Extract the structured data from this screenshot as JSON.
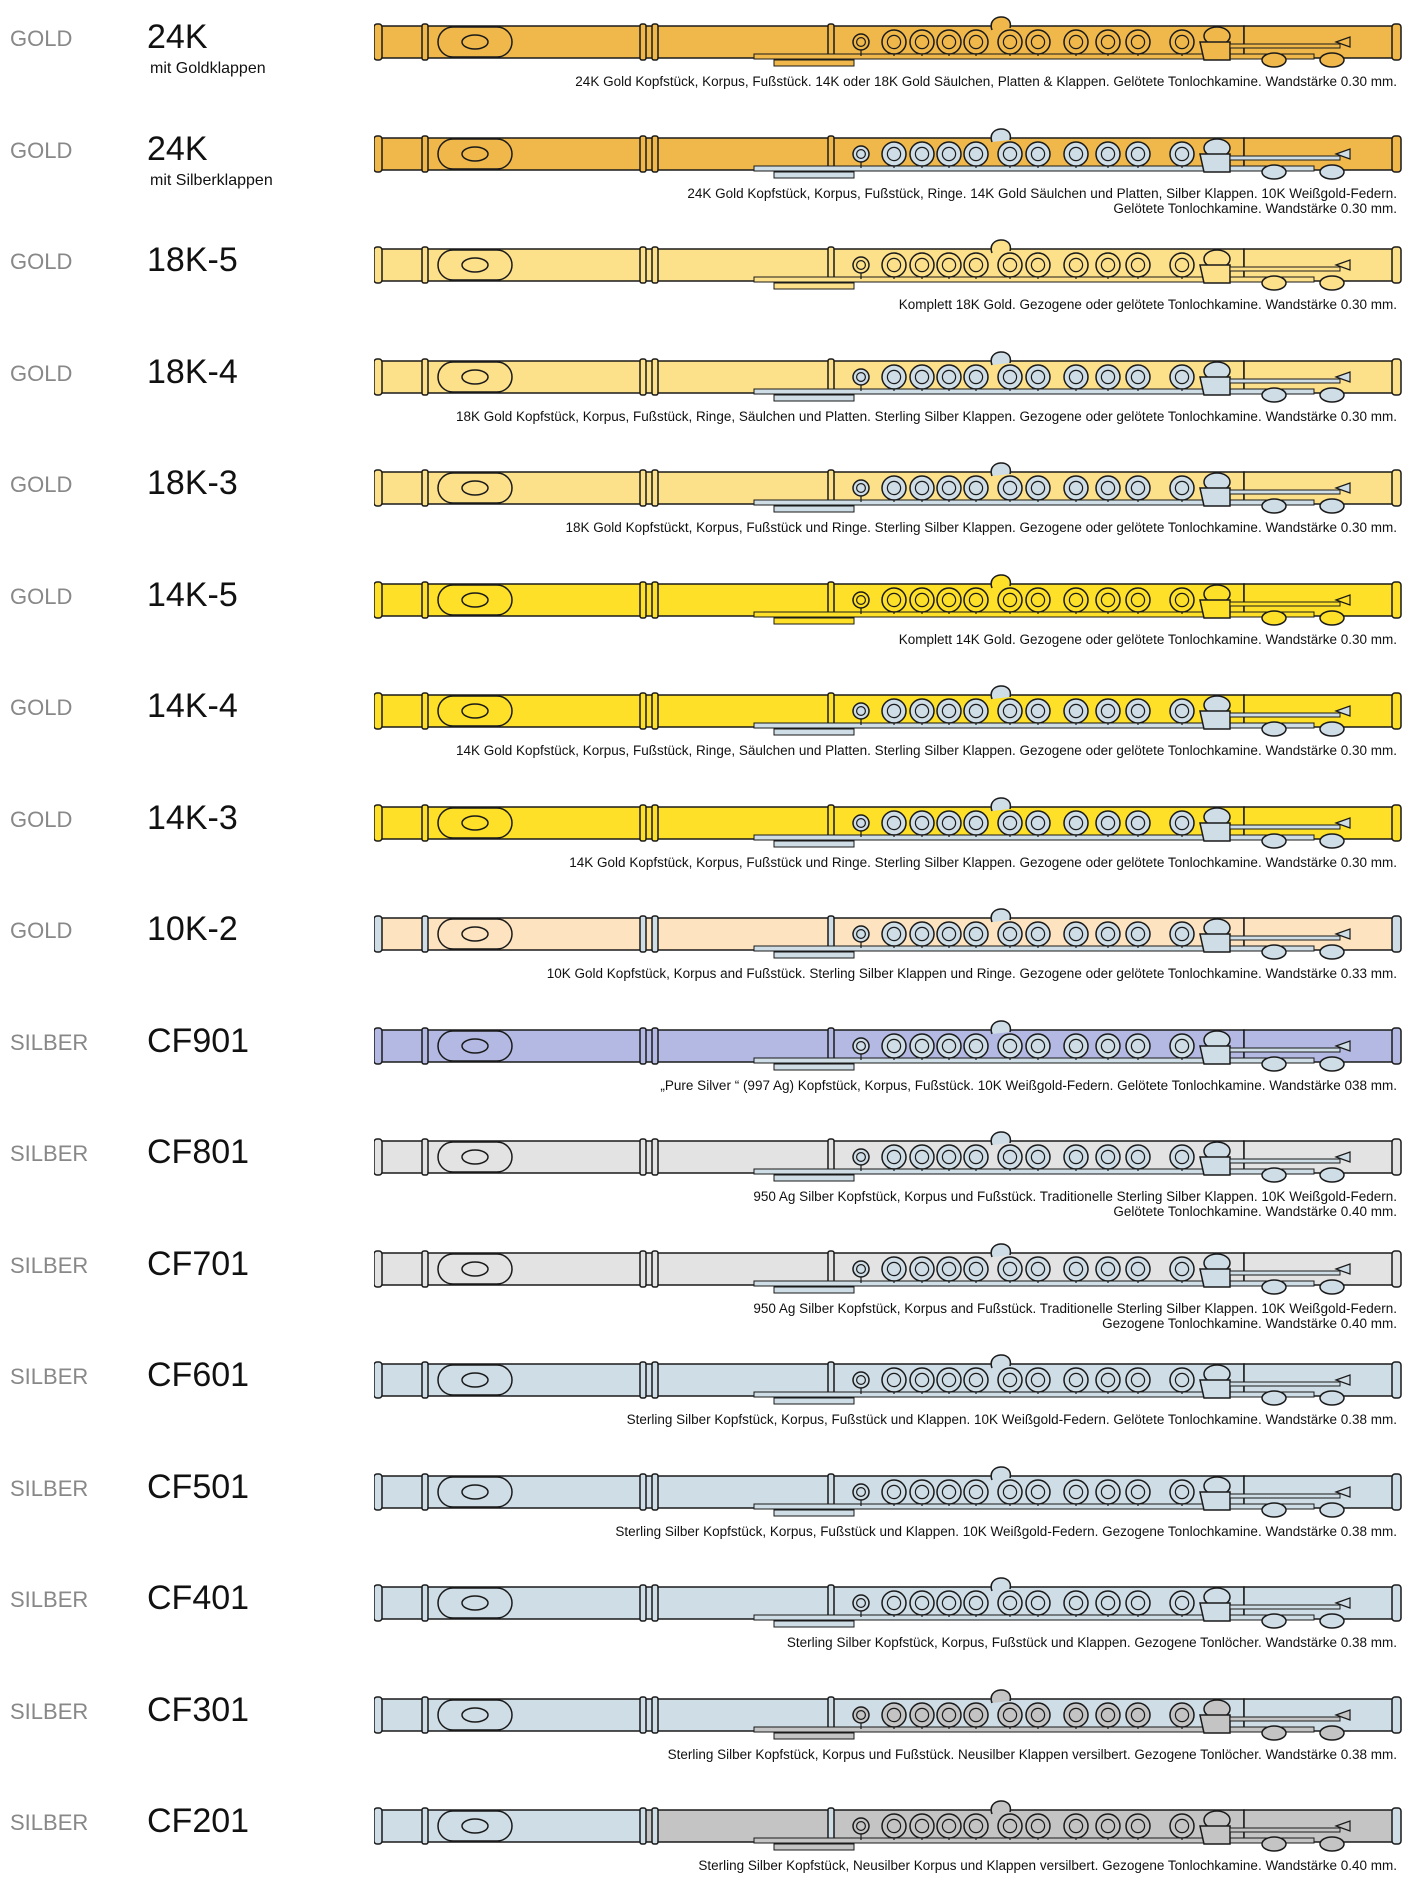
{
  "colors": {
    "gold_24k": "#f0b84a",
    "gold_18k": "#fde08a",
    "gold_14k": "#fde027",
    "gold_10k": "#fde3bf",
    "pure_silver": "#b4b9e3",
    "silver_950": "#e3e3e3",
    "sterling": "#cfdde6",
    "nickel_silver": "#c4c4c4",
    "outline": "#1a1a1a"
  },
  "rows": [
    {
      "category": "GOLD",
      "model": "24K",
      "subtitle": "mit Goldklappen",
      "description": "24K Gold Kopfstück, Korpus, Fußstück. 14K oder 18K Gold Säulchen, Platten & Klappen. Gelötete Tonlochkamine. Wandstärke 0.30 mm.",
      "head_color": "gold_24k",
      "body_color": "gold_24k",
      "foot_color": "gold_24k",
      "key_color": "gold_24k",
      "ring_color": "gold_24k"
    },
    {
      "category": "GOLD",
      "model": "24K",
      "subtitle": "mit Silberklappen",
      "description": "24K Gold Kopfstück, Korpus, Fußstück, Ringe. 14K Gold Säulchen und Platten, Silber Klappen. 10K Weißgold-Federn.\nGelötete Tonlochkamine. Wandstärke 0.30 mm.",
      "head_color": "gold_24k",
      "body_color": "gold_24k",
      "foot_color": "gold_24k",
      "key_color": "sterling",
      "ring_color": "gold_24k"
    },
    {
      "category": "GOLD",
      "model": "18K-5",
      "subtitle": "",
      "description": "Komplett 18K Gold. Gezogene oder gelötete Tonlochkamine. Wandstärke 0.30 mm.",
      "head_color": "gold_18k",
      "body_color": "gold_18k",
      "foot_color": "gold_18k",
      "key_color": "gold_18k",
      "ring_color": "gold_18k"
    },
    {
      "category": "GOLD",
      "model": "18K-4",
      "subtitle": "",
      "description": "18K Gold Kopfstück, Korpus, Fußstück, Ringe, Säulchen und Platten. Sterling Silber Klappen. Gezogene oder gelötete Tonlochkamine. Wandstärke 0.30 mm.",
      "head_color": "gold_18k",
      "body_color": "gold_18k",
      "foot_color": "gold_18k",
      "key_color": "sterling",
      "ring_color": "gold_18k"
    },
    {
      "category": "GOLD",
      "model": "18K-3",
      "subtitle": "",
      "description": "18K Gold Kopfstückt, Korpus, Fußstück und Ringe.  Sterling Silber Klappen. Gezogene oder gelötete Tonlochkamine. Wandstärke 0.30 mm.",
      "head_color": "gold_18k",
      "body_color": "gold_18k",
      "foot_color": "gold_18k",
      "key_color": "sterling",
      "ring_color": "gold_18k"
    },
    {
      "category": "GOLD",
      "model": "14K-5",
      "subtitle": "",
      "description": "Komplett 14K Gold. Gezogene oder gelötete Tonlochkamine. Wandstärke 0.30 mm.",
      "head_color": "gold_14k",
      "body_color": "gold_14k",
      "foot_color": "gold_14k",
      "key_color": "gold_14k",
      "ring_color": "gold_14k"
    },
    {
      "category": "GOLD",
      "model": "14K-4",
      "subtitle": "",
      "description": "14K Gold Kopfstück, Korpus, Fußstück, Ringe, Säulchen und Platten. Sterling Silber Klappen. Gezogene oder gelötete Tonlochkamine. Wandstärke 0.30 mm.",
      "head_color": "gold_14k",
      "body_color": "gold_14k",
      "foot_color": "gold_14k",
      "key_color": "sterling",
      "ring_color": "gold_14k"
    },
    {
      "category": "GOLD",
      "model": "14K-3",
      "subtitle": "",
      "description": "14K Gold Kopfstück, Korpus, Fußstück und Ringe. Sterling Silber Klappen. Gezogene oder gelötete Tonlochkamine. Wandstärke 0.30 mm.",
      "head_color": "gold_14k",
      "body_color": "gold_14k",
      "foot_color": "gold_14k",
      "key_color": "sterling",
      "ring_color": "gold_14k"
    },
    {
      "category": "GOLD",
      "model": "10K-2",
      "subtitle": "",
      "description": "10K Gold Kopfstück, Korpus and Fußstück. Sterling Silber Klappen und Ringe. Gezogene oder gelötete Tonlochkamine. Wandstärke 0.33 mm.",
      "head_color": "gold_10k",
      "body_color": "gold_10k",
      "foot_color": "gold_10k",
      "key_color": "sterling",
      "ring_color": "sterling"
    },
    {
      "category": "SILBER",
      "model": "CF901",
      "subtitle": "",
      "description": "„Pure Silver “ (997 Ag) Kopfstück, Korpus, Fußstück. 10K Weißgold-Federn. Gelötete Tonlochkamine. Wandstärke 038 mm.",
      "head_color": "pure_silver",
      "body_color": "pure_silver",
      "foot_color": "pure_silver",
      "key_color": "sterling",
      "ring_color": "pure_silver"
    },
    {
      "category": "SILBER",
      "model": "CF801",
      "subtitle": "",
      "description": "950 Ag Silber Kopfstück, Korpus und Fußstück. Traditionelle Sterling Silber Klappen. 10K Weißgold-Federn.\nGelötete Tonlochkamine. Wandstärke 0.40 mm.",
      "head_color": "silver_950",
      "body_color": "silver_950",
      "foot_color": "silver_950",
      "key_color": "sterling",
      "ring_color": "silver_950"
    },
    {
      "category": "SILBER",
      "model": "CF701",
      "subtitle": "",
      "description": "950 Ag Silber Kopfstück, Korpus and Fußstück. Traditionelle Sterling Silber Klappen. 10K Weißgold-Federn.\nGezogene Tonlochkamine. Wandstärke 0.40 mm.",
      "head_color": "silver_950",
      "body_color": "silver_950",
      "foot_color": "silver_950",
      "key_color": "sterling",
      "ring_color": "silver_950"
    },
    {
      "category": "SILBER",
      "model": "CF601",
      "subtitle": "",
      "description": "Sterling Silber Kopfstück, Korpus, Fußstück und Klappen. 10K Weißgold-Federn. Gelötete Tonlochkamine. Wandstärke 0.38 mm.",
      "head_color": "sterling",
      "body_color": "sterling",
      "foot_color": "sterling",
      "key_color": "sterling",
      "ring_color": "sterling"
    },
    {
      "category": "SILBER",
      "model": "CF501",
      "subtitle": "",
      "description": "Sterling Silber Kopfstück, Korpus, Fußstück und Klappen. 10K Weißgold-Federn. Gezogene Tonlochkamine. Wandstärke 0.38 mm.",
      "head_color": "sterling",
      "body_color": "sterling",
      "foot_color": "sterling",
      "key_color": "sterling",
      "ring_color": "sterling"
    },
    {
      "category": "SILBER",
      "model": "CF401",
      "subtitle": "",
      "description": "Sterling Silber Kopfstück, Korpus, Fußstück und Klappen. Gezogene Tonlöcher. Wandstärke 0.38 mm.",
      "head_color": "sterling",
      "body_color": "sterling",
      "foot_color": "sterling",
      "key_color": "sterling",
      "ring_color": "sterling"
    },
    {
      "category": "SILBER",
      "model": "CF301",
      "subtitle": "",
      "description": "Sterling Silber Kopfstück, Korpus und Fußstück. Neusilber Klappen versilbert. Gezogene Tonlöcher. Wandstärke 0.38 mm.",
      "head_color": "sterling",
      "body_color": "sterling",
      "foot_color": "sterling",
      "key_color": "nickel_silver",
      "ring_color": "sterling"
    },
    {
      "category": "SILBER",
      "model": "CF201",
      "subtitle": "",
      "description": "Sterling Silber Kopfstück, Neusilber Korpus und Klappen versilbert. Gezogene Tonlochkamine. Wandstärke 0.40 mm.",
      "head_color": "sterling",
      "body_color": "nickel_silver",
      "foot_color": "nickel_silver",
      "key_color": "nickel_silver",
      "ring_color": "sterling"
    }
  ]
}
